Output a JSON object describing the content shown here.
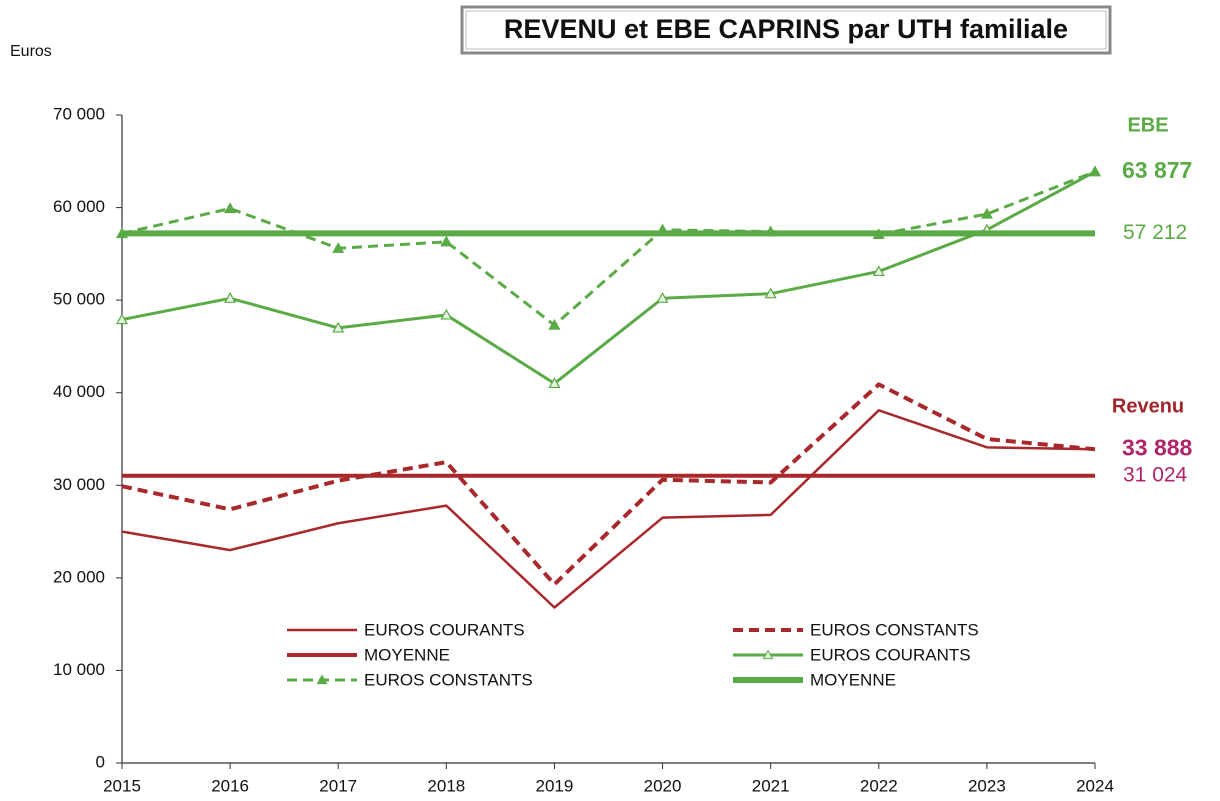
{
  "chart_data": {
    "type": "line",
    "title": "REVENU et EBE CAPRINS par UTH familiale",
    "y_label": "Euros",
    "x": [
      2015,
      2016,
      2017,
      2018,
      2019,
      2020,
      2021,
      2022,
      2023,
      2024
    ],
    "xlim": [
      2015,
      2024
    ],
    "xticks": [
      2015,
      2016,
      2017,
      2018,
      2019,
      2020,
      2021,
      2022,
      2023,
      2024
    ],
    "ylim": [
      0,
      70000
    ],
    "yticks": [
      0,
      {
        "value": 10000,
        "label": "10 000"
      },
      {
        "value": 20000,
        "label": "20 000"
      },
      {
        "value": 30000,
        "label": "30 000"
      },
      {
        "value": 40000,
        "label": "40 000"
      },
      {
        "value": 50000,
        "label": "50 000"
      },
      {
        "value": 60000,
        "label": "60 000"
      },
      {
        "value": 70000,
        "label": "70 000"
      }
    ],
    "grid": false,
    "series": [
      {
        "name": "EUROS COURANTS",
        "color": "#a8282c",
        "dash": "solid",
        "width": 2.5,
        "marker": "none",
        "values": [
          25000,
          23000,
          25900,
          27800,
          16800,
          26500,
          26800,
          38100,
          34100,
          33888
        ]
      },
      {
        "name": "EUROS CONSTANTS",
        "color": "#a8282c",
        "dash": "dashed",
        "width": 4,
        "marker": "none",
        "values": [
          29900,
          27400,
          30500,
          32500,
          19300,
          30600,
          30300,
          40900,
          35000,
          33888
        ]
      },
      {
        "name": "MOYENNE",
        "color": "#a8282c",
        "dash": "solid",
        "width": 4,
        "marker": "none",
        "values": [
          31024,
          31024,
          31024,
          31024,
          31024,
          31024,
          31024,
          31024,
          31024,
          31024
        ]
      },
      {
        "name": "EUROS COURANTS",
        "color": "#5aaa46",
        "dash": "solid",
        "width": 3,
        "marker": "triangle-open",
        "values": [
          47900,
          50200,
          47000,
          48400,
          41000,
          50200,
          50700,
          53100,
          57600,
          63877
        ]
      },
      {
        "name": "EUROS CONSTANTS",
        "color": "#5aaa46",
        "dash": "dashed",
        "width": 3,
        "marker": "triangle",
        "values": [
          57200,
          59900,
          55600,
          56300,
          47300,
          57600,
          57400,
          57100,
          59300,
          63877
        ]
      },
      {
        "name": "MOYENNE",
        "color": "#5aaa46",
        "dash": "solid",
        "width": 6,
        "marker": "none",
        "values": [
          57212,
          57212,
          57212,
          57212,
          57212,
          57212,
          57212,
          57212,
          57212,
          57212
        ]
      }
    ],
    "annotations": [
      {
        "text": "EBE",
        "color": "#5aaa46",
        "bold": true
      },
      {
        "label": "63 877",
        "value": 63877,
        "color": "#5aaa46",
        "bold": true
      },
      {
        "label": "57 212",
        "value": 57212,
        "color": "#5aaa46",
        "bold": false
      },
      {
        "text": "Revenu",
        "color": "#a0262a",
        "bold": true
      },
      {
        "label": "33 888",
        "value": 33888,
        "color": "#b0246b",
        "bold": true
      },
      {
        "label": "31 024",
        "value": 31024,
        "color": "#b0246b",
        "bold": false
      }
    ]
  }
}
